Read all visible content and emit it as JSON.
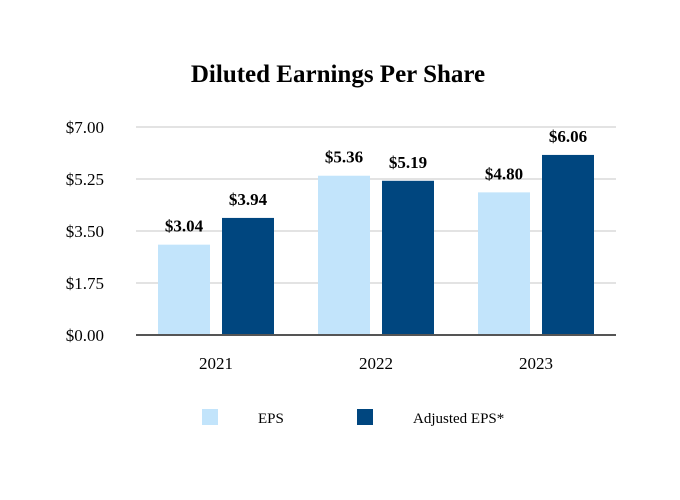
{
  "chart_data": {
    "type": "bar",
    "title": "Diluted Earnings Per Share",
    "xlabel": "",
    "ylabel": "",
    "categories": [
      "2021",
      "2022",
      "2023"
    ],
    "ylim": [
      0,
      7
    ],
    "yticks": [
      0,
      1.75,
      3.5,
      5.25,
      7
    ],
    "ytick_labels": [
      "$0.00",
      "$1.75",
      "$3.50",
      "$5.25",
      "$7.00"
    ],
    "grid": true,
    "legend_position": "bottom",
    "series": [
      {
        "name": "EPS",
        "color": "#c2e4fb",
        "values": [
          3.04,
          5.36,
          4.8
        ],
        "labels": [
          "$3.04",
          "$5.36",
          "$4.80"
        ]
      },
      {
        "name": "Adjusted EPS*",
        "color": "#00467f",
        "values": [
          3.94,
          5.19,
          6.06
        ],
        "labels": [
          "$3.94",
          "$5.19",
          "$6.06"
        ]
      }
    ]
  }
}
